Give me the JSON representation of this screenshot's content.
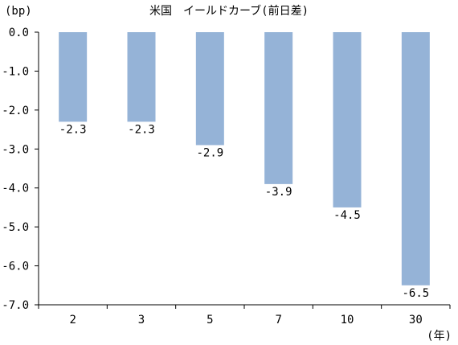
{
  "chart_data": {
    "type": "bar",
    "title": "米国　イールドカーブ(前日差)",
    "ylabel": "(bp)",
    "xlabel": "(年)",
    "categories": [
      "2",
      "3",
      "5",
      "7",
      "10",
      "30"
    ],
    "values": [
      -2.3,
      -2.3,
      -2.9,
      -3.9,
      -4.5,
      -6.5
    ],
    "data_labels": [
      "-2.3",
      "-2.3",
      "-2.9",
      "-3.9",
      "-4.5",
      "-6.5"
    ],
    "ylim": [
      -7.0,
      0.0
    ],
    "yticks": [
      0.0,
      -1.0,
      -2.0,
      -3.0,
      -4.0,
      -5.0,
      -6.0,
      -7.0
    ],
    "ytick_labels": [
      "0.0",
      "-1.0",
      "-2.0",
      "-3.0",
      "-4.0",
      "-5.0",
      "-6.0",
      "-7.0"
    ],
    "grid": false,
    "legend": "none",
    "colors": {
      "bar": "#95b3d7",
      "axis": "#000000"
    }
  }
}
